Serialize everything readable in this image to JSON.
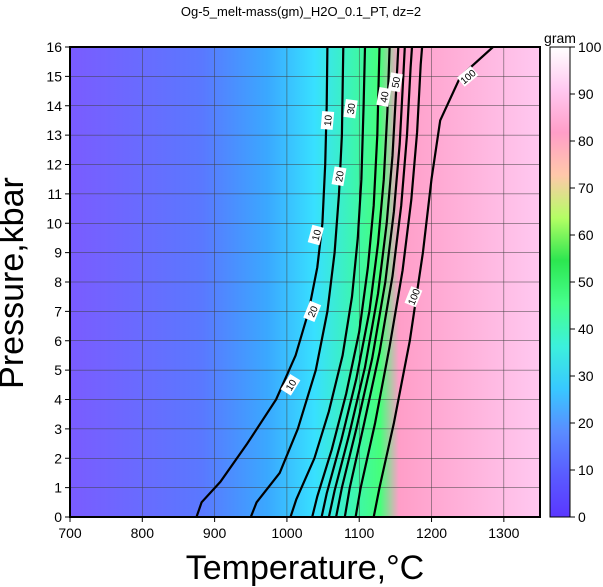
{
  "chart_data": {
    "type": "heatmap",
    "title": "Og-5_melt-mass(gm)_H2O_0.1_PT, dz=2",
    "xlabel": "Temperature,°C",
    "ylabel": "Pressure,kbar",
    "xlim": [
      700,
      1350
    ],
    "ylim": [
      0,
      16
    ],
    "x_ticks": [
      "700",
      "800",
      "900",
      "1000",
      "1100",
      "1200",
      "1300"
    ],
    "y_ticks": [
      "0",
      "1",
      "2",
      "3",
      "4",
      "5",
      "6",
      "7",
      "8",
      "9",
      "10",
      "11",
      "12",
      "13",
      "14",
      "15",
      "16"
    ],
    "grid": true,
    "colorbar": {
      "label": "gram",
      "range": [
        0,
        100
      ],
      "ticks": [
        "0",
        "10",
        "20",
        "30",
        "40",
        "50",
        "60",
        "70",
        "80",
        "90",
        "100"
      ],
      "colors": [
        "#5a37ff",
        "#5a5cff",
        "#5a8cff",
        "#38c8ff",
        "#3cf0dc",
        "#46ff8c",
        "#2ce650",
        "#b4ff64",
        "#ffc8aa",
        "#ff9ec8",
        "#ffc8f0",
        "#ffffff"
      ]
    },
    "contours": [
      {
        "level": 10,
        "bold": true,
        "points": [
          [
            875,
            0
          ],
          [
            882,
            0.5
          ],
          [
            908,
            1.2
          ],
          [
            945,
            2.5
          ],
          [
            985,
            4
          ],
          [
            1012,
            5.5
          ],
          [
            1030,
            7
          ],
          [
            1042,
            8.5
          ],
          [
            1049,
            10
          ],
          [
            1053,
            12
          ],
          [
            1055,
            14
          ],
          [
            1056,
            16
          ]
        ]
      },
      {
        "level": 20,
        "bold": true,
        "points": [
          [
            950,
            0
          ],
          [
            958,
            0.5
          ],
          [
            990,
            1.5
          ],
          [
            1015,
            3
          ],
          [
            1040,
            5
          ],
          [
            1056,
            7
          ],
          [
            1066,
            9
          ],
          [
            1072,
            11
          ],
          [
            1076,
            13
          ],
          [
            1078,
            16
          ]
        ]
      },
      {
        "level": 30,
        "bold": true,
        "points": [
          [
            1005,
            0
          ],
          [
            1013,
            0.6
          ],
          [
            1038,
            2
          ],
          [
            1058,
            3.6
          ],
          [
            1077,
            5.5
          ],
          [
            1090,
            7.5
          ],
          [
            1098,
            9.5
          ],
          [
            1103,
            11.5
          ],
          [
            1106,
            14
          ],
          [
            1108,
            16
          ]
        ]
      },
      {
        "level": 40,
        "bold": true,
        "points": [
          [
            1035,
            0
          ],
          [
            1042,
            0.7
          ],
          [
            1062,
            2.3
          ],
          [
            1082,
            4.2
          ],
          [
            1100,
            6.3
          ],
          [
            1112,
            8.5
          ],
          [
            1120,
            10.6
          ],
          [
            1125,
            13
          ],
          [
            1128,
            16
          ]
        ]
      },
      {
        "level": 50,
        "bold": true,
        "points": [
          [
            1048,
            0
          ],
          [
            1055,
            0.8
          ],
          [
            1075,
            2.6
          ],
          [
            1096,
            4.7
          ],
          [
            1114,
            7
          ],
          [
            1126,
            9.3
          ],
          [
            1134,
            11.5
          ],
          [
            1139,
            13.8
          ],
          [
            1142,
            16
          ]
        ]
      },
      {
        "level": 60,
        "bold": true,
        "points": [
          [
            1058,
            0
          ],
          [
            1066,
            0.9
          ],
          [
            1086,
            2.8
          ],
          [
            1108,
            5.1
          ],
          [
            1126,
            7.6
          ],
          [
            1138,
            10
          ],
          [
            1146,
            12.3
          ],
          [
            1151,
            14.5
          ],
          [
            1154,
            16
          ]
        ]
      },
      {
        "level": 70,
        "bold": true,
        "points": [
          [
            1068,
            0
          ],
          [
            1076,
            1
          ],
          [
            1096,
            3
          ],
          [
            1118,
            5.4
          ],
          [
            1136,
            8
          ],
          [
            1148,
            10.4
          ],
          [
            1156,
            12.7
          ],
          [
            1161,
            15
          ],
          [
            1163,
            16
          ]
        ]
      },
      {
        "level": 80,
        "bold": true,
        "points": [
          [
            1080,
            0
          ],
          [
            1087,
            1
          ],
          [
            1106,
            3.1
          ],
          [
            1128,
            5.6
          ],
          [
            1146,
            8.2
          ],
          [
            1158,
            10.6
          ],
          [
            1166,
            13
          ],
          [
            1171,
            15.3
          ],
          [
            1173,
            16
          ]
        ]
      },
      {
        "level": 90,
        "bold": true,
        "points": [
          [
            1095,
            0
          ],
          [
            1102,
            1
          ],
          [
            1122,
            3.2
          ],
          [
            1142,
            5.8
          ],
          [
            1160,
            8.4
          ],
          [
            1172,
            10.8
          ],
          [
            1180,
            13.1
          ],
          [
            1185,
            15.4
          ],
          [
            1187,
            16
          ]
        ]
      },
      {
        "level": 100,
        "bold": true,
        "points": [
          [
            1120,
            0
          ],
          [
            1128,
            1
          ],
          [
            1148,
            3.2
          ],
          [
            1170,
            6
          ],
          [
            1188,
            9
          ],
          [
            1200,
            11.5
          ],
          [
            1212,
            13.5
          ],
          [
            1240,
            15
          ],
          [
            1285,
            16
          ]
        ]
      }
    ],
    "contour_labels": [
      {
        "text": "10",
        "x": 1005,
        "y": 4.5,
        "angle": -58
      },
      {
        "text": "10",
        "x": 1040,
        "y": 9.6,
        "angle": -75
      },
      {
        "text": "10",
        "x": 1056,
        "y": 13.5,
        "angle": -85
      },
      {
        "text": "20",
        "x": 1035,
        "y": 7.0,
        "angle": -68
      },
      {
        "text": "20",
        "x": 1072,
        "y": 11.6,
        "angle": -80
      },
      {
        "text": "30",
        "x": 1088,
        "y": 13.9,
        "angle": -82
      },
      {
        "text": "40",
        "x": 1134,
        "y": 14.3,
        "angle": -80
      },
      {
        "text": "50",
        "x": 1150,
        "y": 14.8,
        "angle": -80
      },
      {
        "text": "100",
        "x": 1250,
        "y": 15.0,
        "angle": -40
      },
      {
        "text": "100",
        "x": 1175,
        "y": 7.5,
        "angle": -68
      }
    ]
  }
}
